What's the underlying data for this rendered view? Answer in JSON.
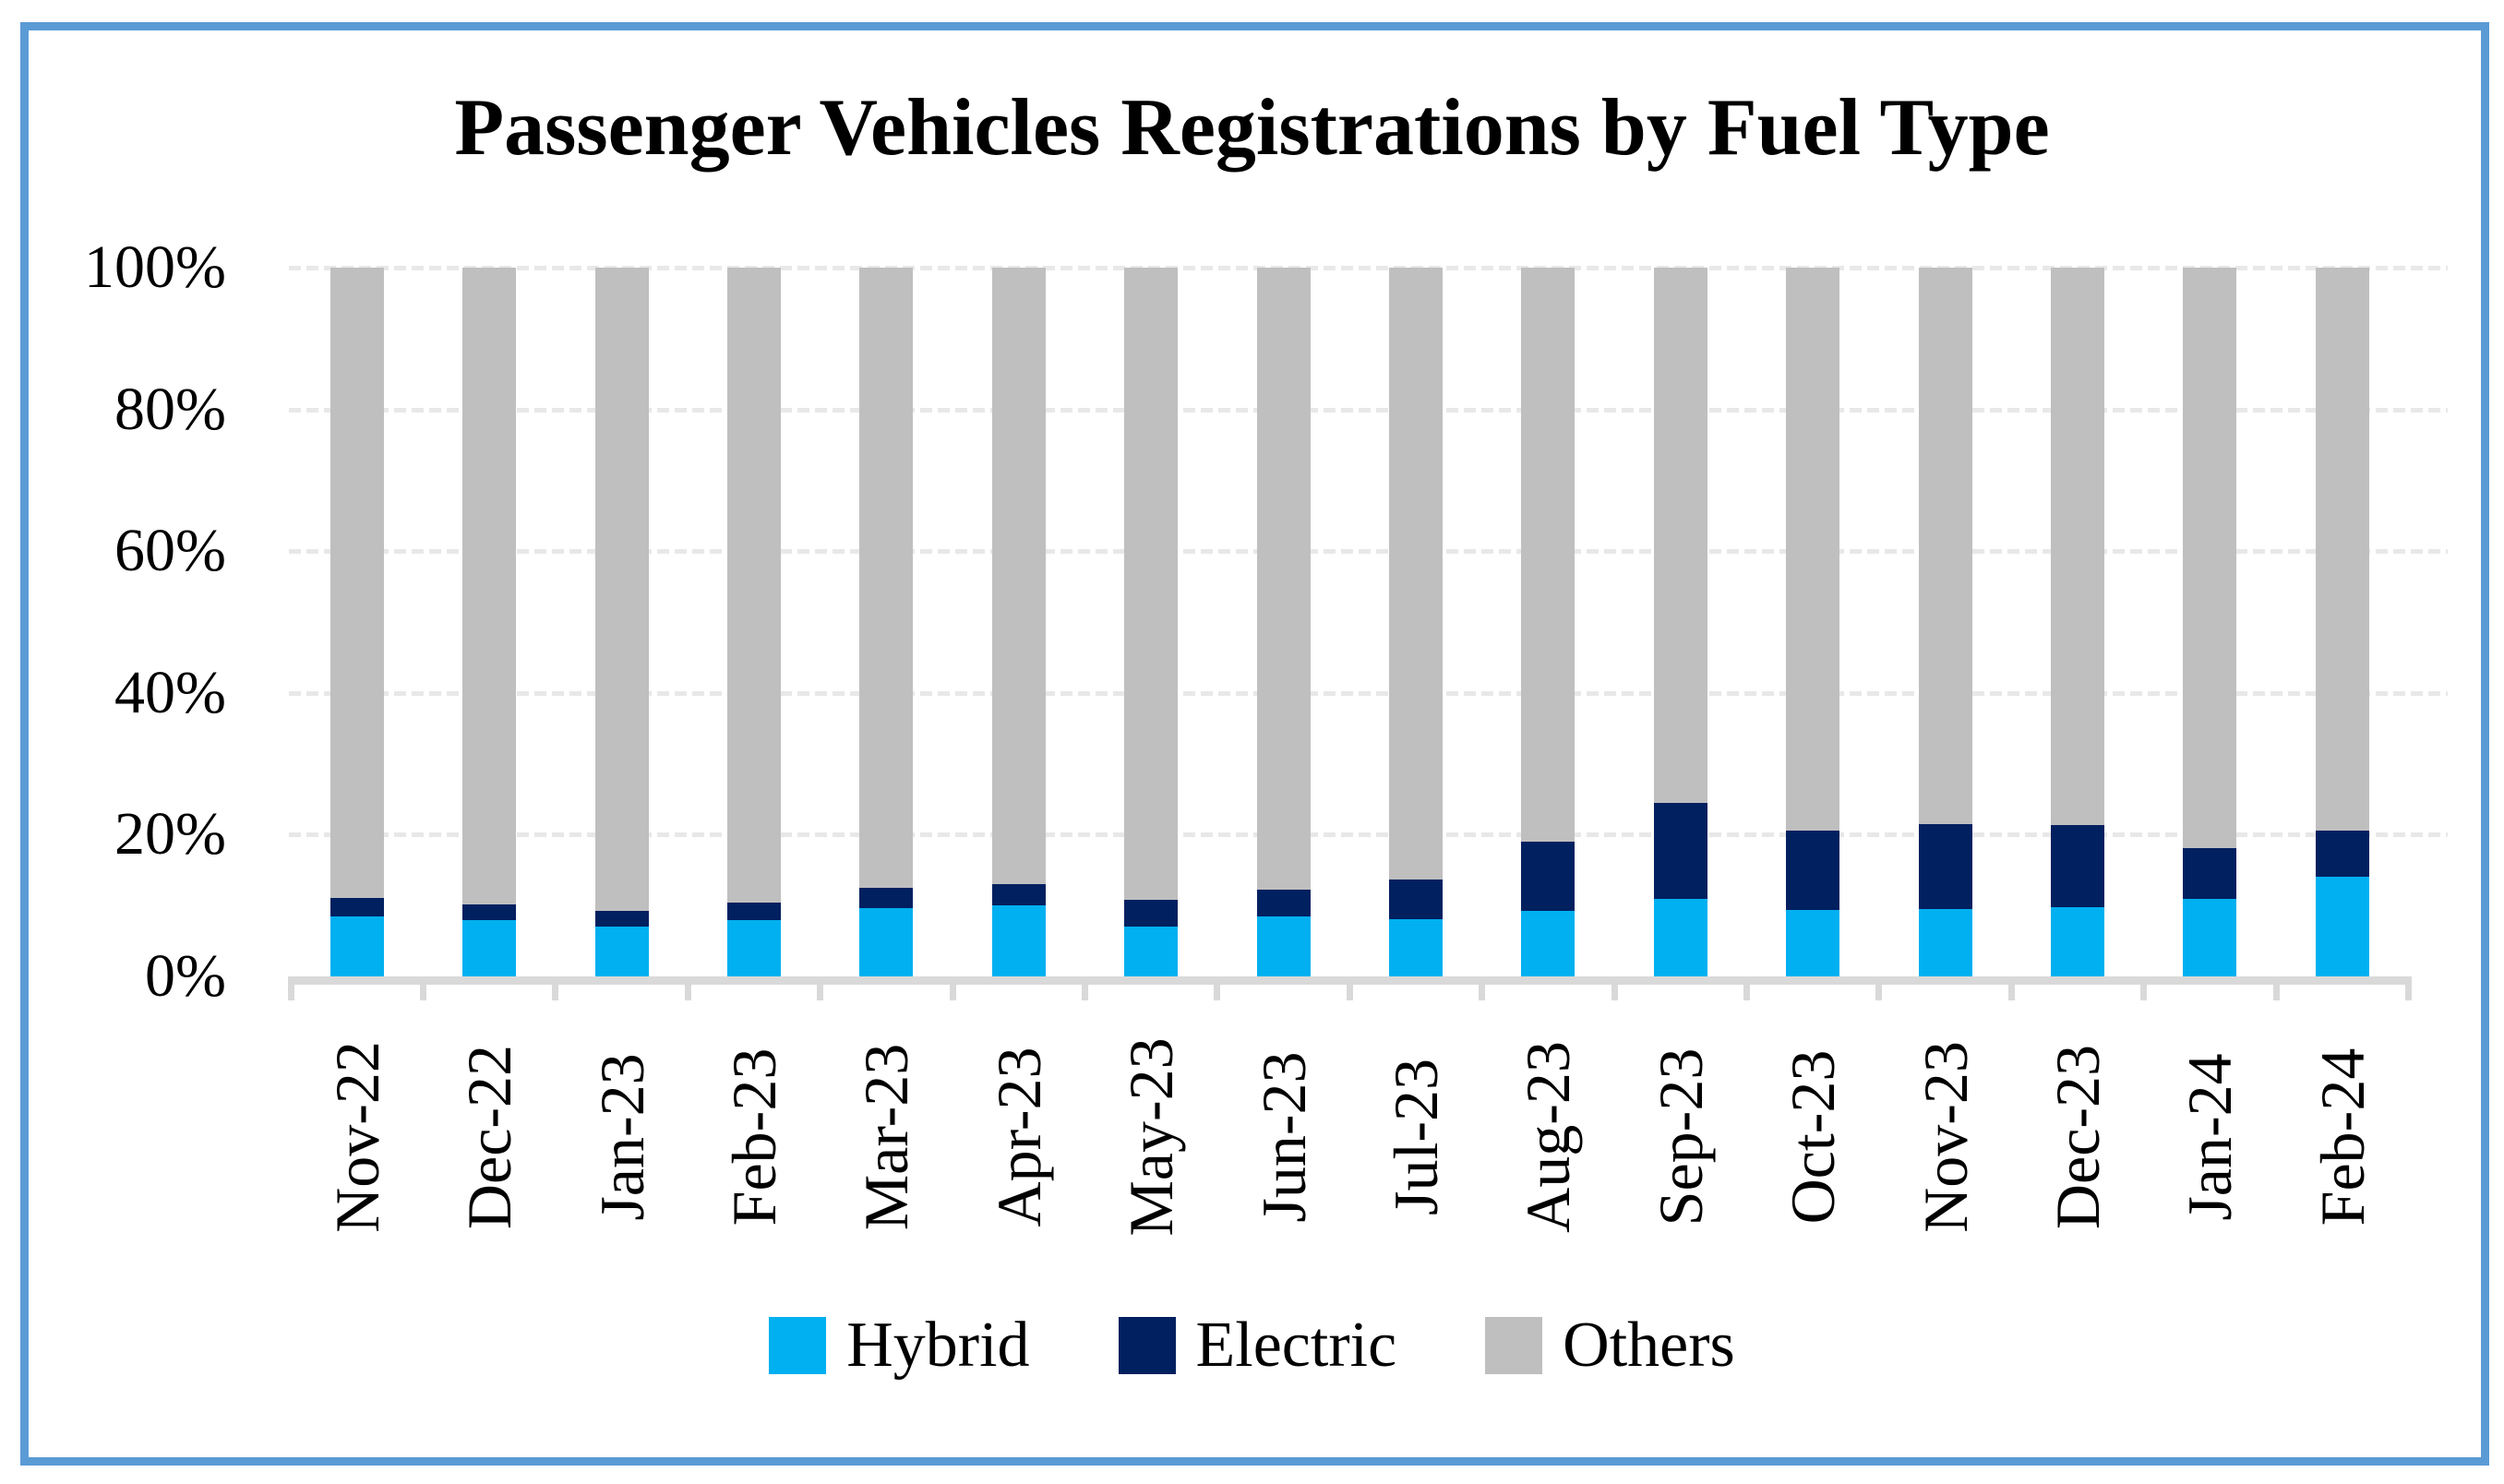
{
  "frame": {
    "border_color": "#5B9BD5",
    "background_color": "#FFFFFF"
  },
  "chart_data": {
    "type": "bar",
    "stacked": true,
    "percent_stacked": true,
    "title": "Passenger Vehicles Registrations by Fuel Type",
    "categories": [
      "Nov-22",
      "Dec-22",
      "Jan-23",
      "Feb-23",
      "Mar-23",
      "Apr-23",
      "May-23",
      "Jun-23",
      "Jul-23",
      "Aug-23",
      "Sep-23",
      "Oct-23",
      "Nov-23",
      "Dec-23",
      "Jan-24",
      "Feb-24"
    ],
    "series": [
      {
        "name": "Hybrid",
        "color": "#00B0F0",
        "values": [
          8.4,
          8.0,
          7.0,
          8.0,
          9.7,
          10.0,
          7.0,
          8.4,
          8.1,
          9.3,
          11.0,
          9.4,
          9.5,
          9.8,
          11.0,
          14.0
        ]
      },
      {
        "name": "Electric",
        "color": "#002060",
        "values": [
          2.7,
          2.2,
          2.2,
          2.4,
          2.8,
          3.0,
          3.8,
          3.9,
          5.6,
          9.7,
          13.5,
          11.2,
          12.0,
          11.5,
          7.1,
          6.6
        ]
      },
      {
        "name": "Others",
        "color": "#BFBFBF",
        "values": [
          88.9,
          89.8,
          90.8,
          89.6,
          87.5,
          87.0,
          89.2,
          87.7,
          86.3,
          81.0,
          75.5,
          79.4,
          78.5,
          78.7,
          81.9,
          79.4
        ]
      }
    ],
    "y_axis": {
      "unit": "%",
      "min": 0,
      "max": 100,
      "ticks": [
        {
          "label": "100%",
          "value": 100
        },
        {
          "label": "80%",
          "value": 80
        },
        {
          "label": "60%",
          "value": 60
        },
        {
          "label": "40%",
          "value": 40
        },
        {
          "label": "20%",
          "value": 20
        },
        {
          "label": "0%",
          "value": 0
        }
      ]
    },
    "legend": {
      "position": "bottom",
      "entries": [
        "Hybrid",
        "Electric",
        "Others"
      ]
    },
    "gridlines": {
      "shown": true,
      "style": "dashed",
      "color": "#E8E8E8"
    },
    "axis_line_color": "#D9D9D9"
  }
}
